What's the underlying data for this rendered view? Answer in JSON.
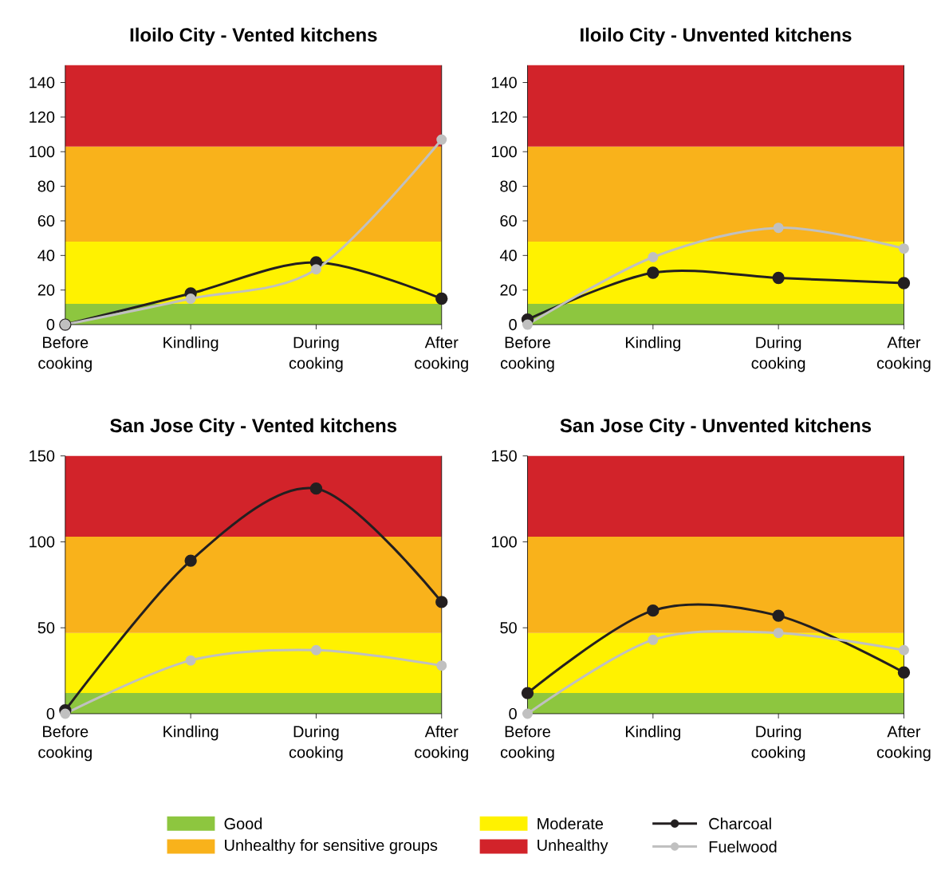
{
  "chart_data": [
    {
      "type": "line",
      "title": "Iloilo City - Vented kitchens",
      "categories": [
        "Before cooking",
        "Kindling",
        "During cooking",
        "After cooking"
      ],
      "ylim": [
        0,
        150
      ],
      "yticks": [
        0,
        20,
        40,
        60,
        80,
        100,
        120,
        140
      ],
      "marker": "circle",
      "legend": "bottom",
      "series": [
        {
          "name": "Charcoal",
          "color": "#231f20",
          "values": [
            0,
            18,
            36,
            15
          ]
        },
        {
          "name": "Fuelwood",
          "color": "#c0c0c0",
          "values": [
            0,
            15,
            32,
            107
          ]
        }
      ],
      "bands": [
        {
          "axis": "y",
          "from": 0,
          "to": 12,
          "label": "Good",
          "color": "#8dc63f"
        },
        {
          "axis": "y",
          "from": 12,
          "to": 48,
          "label": "Moderate",
          "color": "#fff200"
        },
        {
          "axis": "y",
          "from": 48,
          "to": 103,
          "label": "Unhealthy for sensitive groups",
          "color": "#f9b21b"
        },
        {
          "axis": "y",
          "from": 103,
          "to": 150,
          "label": "Unhealthy",
          "color": "#d2232a"
        }
      ]
    },
    {
      "type": "line",
      "title": "Iloilo City - Unvented kitchens",
      "categories": [
        "Before cooking",
        "Kindling",
        "During cooking",
        "After cooking"
      ],
      "ylim": [
        0,
        150
      ],
      "yticks": [
        0,
        20,
        40,
        60,
        80,
        100,
        120,
        140
      ],
      "marker": "circle",
      "series": [
        {
          "color": "#231f20",
          "values": [
            3,
            30,
            27,
            24
          ]
        },
        {
          "color": "#c0c0c0",
          "values": [
            0,
            39,
            56,
            44
          ]
        }
      ],
      "bands": [
        {
          "axis": "y",
          "from": 0,
          "to": 12,
          "color": "#8dc63f"
        },
        {
          "axis": "y",
          "from": 12,
          "to": 48,
          "color": "#fff200"
        },
        {
          "axis": "y",
          "from": 48,
          "to": 103,
          "color": "#f9b21b"
        },
        {
          "axis": "y",
          "from": 103,
          "to": 150,
          "color": "#d2232a"
        }
      ]
    },
    {
      "type": "line",
      "title": "San Jose City - Vented kitchens",
      "categories": [
        "Before cooking",
        "Kindling",
        "During cooking",
        "After cooking"
      ],
      "ylim": [
        0,
        150
      ],
      "yticks": [
        0,
        50,
        100,
        150
      ],
      "marker": "circle",
      "series": [
        {
          "color": "#231f20",
          "values": [
            2,
            89,
            131,
            65
          ]
        },
        {
          "color": "#c0c0c0",
          "values": [
            0,
            31,
            37,
            28
          ]
        }
      ],
      "bands": [
        {
          "axis": "y",
          "from": 0,
          "to": 12,
          "color": "#8dc63f"
        },
        {
          "axis": "y",
          "from": 12,
          "to": 47,
          "color": "#fff200"
        },
        {
          "axis": "y",
          "from": 47,
          "to": 103,
          "color": "#f9b21b"
        },
        {
          "axis": "y",
          "from": 103,
          "to": 150,
          "color": "#d2232a"
        }
      ]
    },
    {
      "type": "line",
      "title": "San Jose City - Unvented kitchens",
      "categories": [
        "Before cooking",
        "Kindling",
        "During cooking",
        "After cooking"
      ],
      "ylim": [
        0,
        150
      ],
      "yticks": [
        0,
        50,
        100,
        150
      ],
      "marker": "circle",
      "series": [
        {
          "color": "#231f20",
          "values": [
            12,
            60,
            57,
            24
          ]
        },
        {
          "color": "#c0c0c0",
          "values": [
            0,
            43,
            47,
            37
          ]
        }
      ],
      "bands": [
        {
          "axis": "y",
          "from": 0,
          "to": 12,
          "color": "#8dc63f"
        },
        {
          "axis": "y",
          "from": 12,
          "to": 47,
          "color": "#fff200"
        },
        {
          "axis": "y",
          "from": 47,
          "to": 103,
          "color": "#f9b21b"
        },
        {
          "axis": "y",
          "from": 103,
          "to": 150,
          "color": "#d2232a"
        }
      ]
    }
  ]
}
